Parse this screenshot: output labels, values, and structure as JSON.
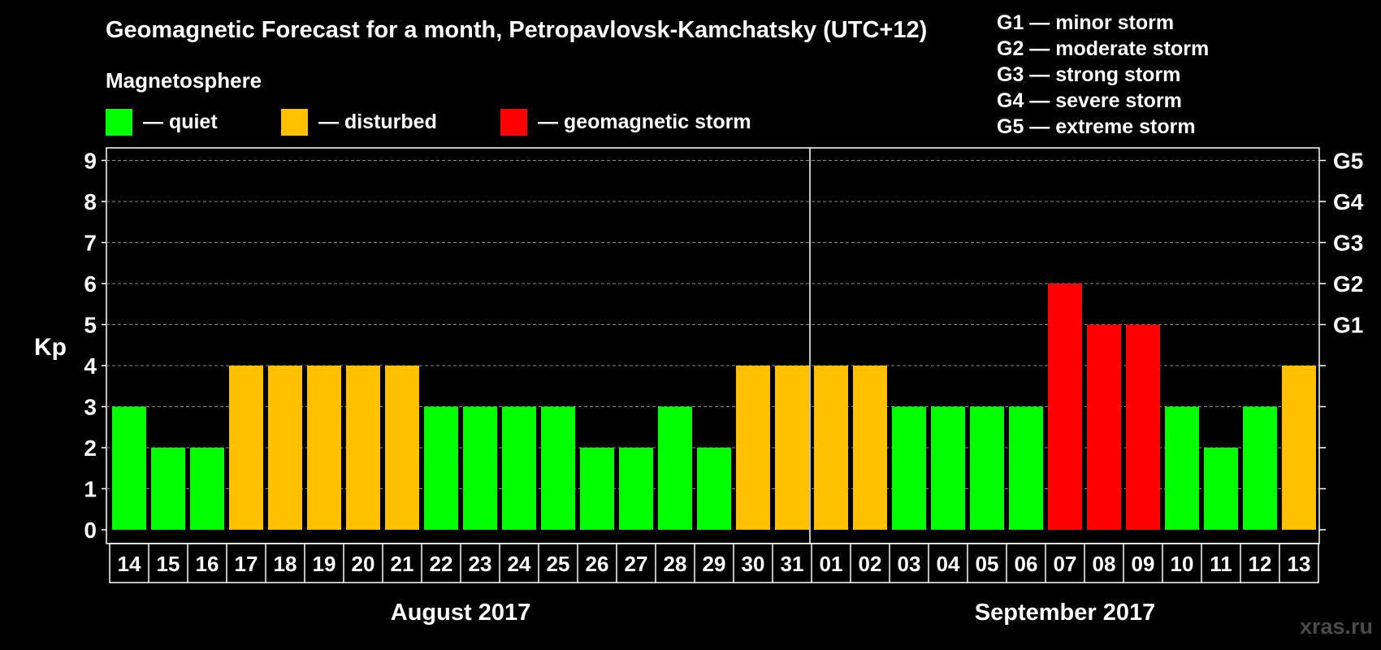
{
  "title": "Geomagnetic Forecast for a month, Petropavlovsk-Kamchatsky (UTC+12)",
  "legend": {
    "heading": "Magnetosphere",
    "items": [
      {
        "label": "— quiet",
        "color": "#00ff00"
      },
      {
        "label": "— disturbed",
        "color": "#ffc000"
      },
      {
        "label": "— geomagnetic storm",
        "color": "#ff0000"
      }
    ]
  },
  "storm_scale": [
    "G1 — minor storm",
    "G2 — moderate storm",
    "G3 — strong storm",
    "G4 — severe storm",
    "G5 — extreme storm"
  ],
  "watermark": "xras.ru",
  "chart_data": {
    "type": "bar",
    "ylabel": "Kp",
    "ylim": [
      0,
      9
    ],
    "yticks": [
      0,
      1,
      2,
      3,
      4,
      5,
      6,
      7,
      8,
      9
    ],
    "right_axis_labels": [
      {
        "value": 5,
        "label": "G1"
      },
      {
        "value": 6,
        "label": "G2"
      },
      {
        "value": 7,
        "label": "G3"
      },
      {
        "value": 8,
        "label": "G4"
      },
      {
        "value": 9,
        "label": "G5"
      }
    ],
    "categories": [
      "14",
      "15",
      "16",
      "17",
      "18",
      "19",
      "20",
      "21",
      "22",
      "23",
      "24",
      "25",
      "26",
      "27",
      "28",
      "29",
      "30",
      "31",
      "01",
      "02",
      "03",
      "04",
      "05",
      "06",
      "07",
      "08",
      "09",
      "10",
      "11",
      "12",
      "13"
    ],
    "values": [
      3,
      2,
      2,
      4,
      4,
      4,
      4,
      4,
      3,
      3,
      3,
      3,
      2,
      2,
      3,
      2,
      4,
      4,
      4,
      4,
      3,
      3,
      3,
      3,
      6,
      5,
      5,
      3,
      2,
      3,
      4
    ],
    "levels": [
      "quiet",
      "quiet",
      "quiet",
      "disturbed",
      "disturbed",
      "disturbed",
      "disturbed",
      "disturbed",
      "quiet",
      "quiet",
      "quiet",
      "quiet",
      "quiet",
      "quiet",
      "quiet",
      "quiet",
      "disturbed",
      "disturbed",
      "disturbed",
      "disturbed",
      "quiet",
      "quiet",
      "quiet",
      "quiet",
      "storm",
      "storm",
      "storm",
      "quiet",
      "quiet",
      "quiet",
      "disturbed"
    ],
    "colors": {
      "quiet": "#00ff00",
      "disturbed": "#ffc000",
      "storm": "#ff0000"
    },
    "months": [
      {
        "label": "August 2017",
        "count": 18
      },
      {
        "label": "September 2017",
        "count": 13
      }
    ],
    "grid": true
  }
}
